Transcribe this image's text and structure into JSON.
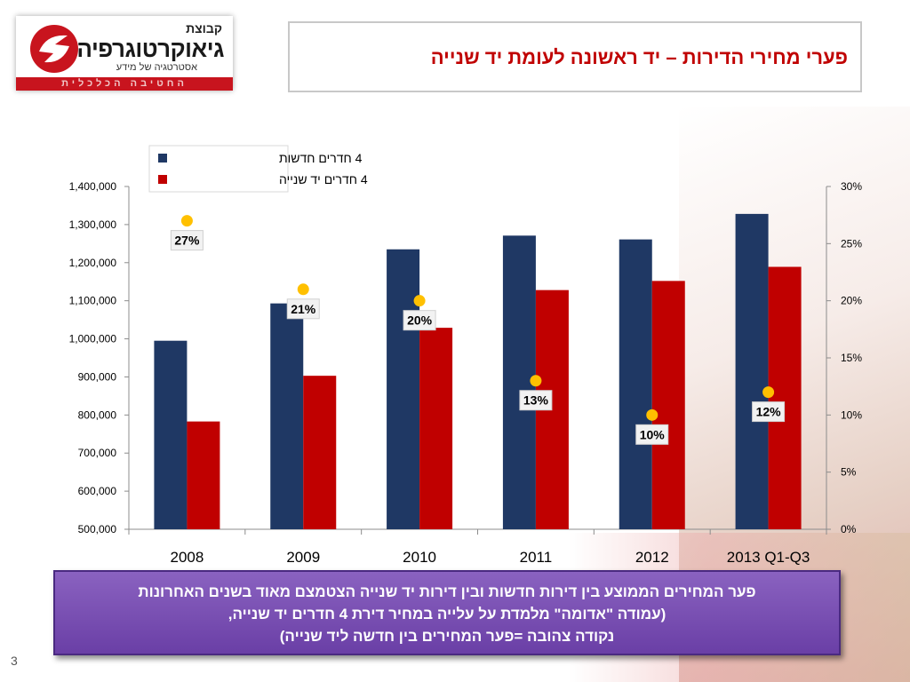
{
  "logo": {
    "small": "קבוצת",
    "main": "גיאוקרטוגרפיה",
    "tagline": "אסטרטגיה של מידע",
    "band": "החטיבה הכלכלית"
  },
  "title": "פערי מחירי הדירות – יד ראשונה לעומת יד שנייה",
  "colors": {
    "new": "#1f3864",
    "secondhand": "#c00000",
    "gap_dot": "#ffc000",
    "title": "#c00000"
  },
  "chart_data": {
    "type": "bar",
    "categories": [
      "2008",
      "2009",
      "2010",
      "2011",
      "2012",
      "2013 Q1-Q3"
    ],
    "series": [
      {
        "name": "4 חדרים חדשות",
        "values": [
          995000,
          1093000,
          1235000,
          1271000,
          1261000,
          1328000
        ]
      },
      {
        "name": "4 חדרים יד שנייה",
        "values": [
          783000,
          903000,
          1029000,
          1128000,
          1152000,
          1189000
        ]
      }
    ],
    "gap": {
      "values": [
        27,
        21,
        20,
        13,
        10,
        12
      ],
      "labels": [
        "27%",
        "21%",
        "20%",
        "13%",
        "10%",
        "12%"
      ]
    },
    "ylim": [
      500000,
      1400000
    ],
    "yticks": [
      "500,000",
      "600,000",
      "700,000",
      "800,000",
      "900,000",
      "1,000,000",
      "1,100,000",
      "1,200,000",
      "1,300,000",
      "1,400,000"
    ],
    "y2lim": [
      0,
      30
    ],
    "y2ticks": [
      "0%",
      "5%",
      "10%",
      "15%",
      "20%",
      "25%",
      "30%"
    ],
    "legend_position": "top-center",
    "grid": false
  },
  "note": {
    "line1": "פער המחירים הממוצע בין דירות חדשות ובין דירות יד שנייה הצטמצם מאוד בשנים האחרונות",
    "line2": "(עמודה \"אדומה\" מלמדת על עלייה במחיר דירת 4 חדרים יד שנייה,",
    "line3": "נקודה צהובה =פער המחירים בין חדשה ליד שנייה)"
  },
  "page_number": "3"
}
